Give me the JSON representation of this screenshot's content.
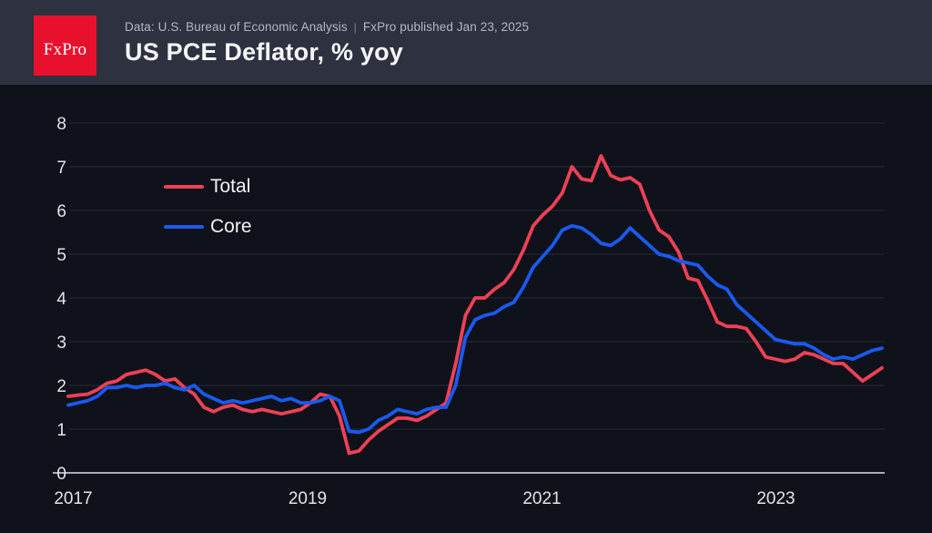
{
  "header": {
    "logo_text": "FxPro",
    "source": "Data: U.S. Bureau of Economic Analysis",
    "separator": "|",
    "published": "FxPro published Jan 23, 2025",
    "title": "US PCE Deflator, % yoy"
  },
  "colors": {
    "logo_red": "#e7112e",
    "header_background": "#2e3140",
    "chart_background": "#0f121a",
    "total_line": "#ef4155",
    "core_line": "#1a5af0"
  },
  "chart_data": {
    "type": "line",
    "title": "US PCE Deflator, % yoy",
    "x_unit": "monthly",
    "x_start": "2017-11",
    "x_end": "2024-11",
    "x_tick_labels": [
      "2017",
      "2019",
      "2021",
      "2023"
    ],
    "y_ticks": [
      0,
      1,
      2,
      3,
      4,
      5,
      6,
      7,
      8
    ],
    "ylim": [
      0,
      8.6
    ],
    "grid": "horizontal",
    "legend_position": "top-left-inside",
    "series": [
      {
        "name": "Total",
        "color": "#ef4155",
        "values": [
          1.75,
          1.78,
          1.8,
          1.9,
          2.05,
          2.1,
          2.25,
          2.3,
          2.35,
          2.25,
          2.1,
          2.15,
          1.95,
          1.8,
          1.5,
          1.4,
          1.5,
          1.55,
          1.45,
          1.4,
          1.45,
          1.4,
          1.35,
          1.4,
          1.45,
          1.6,
          1.8,
          1.75,
          1.3,
          0.45,
          0.5,
          0.75,
          0.95,
          1.1,
          1.25,
          1.25,
          1.2,
          1.3,
          1.45,
          1.6,
          2.5,
          3.6,
          4.0,
          4.0,
          4.2,
          4.35,
          4.65,
          5.1,
          5.65,
          5.9,
          6.1,
          6.4,
          7.0,
          6.72,
          6.68,
          7.25,
          6.8,
          6.7,
          6.75,
          6.6,
          6.0,
          5.55,
          5.4,
          5.05,
          4.45,
          4.4,
          3.95,
          3.45,
          3.35,
          3.35,
          3.3,
          3.0,
          2.65,
          2.6,
          2.55,
          2.6,
          2.75,
          2.7,
          2.6,
          2.5,
          2.5,
          2.3,
          2.1,
          2.25,
          2.4
        ]
      },
      {
        "name": "Core",
        "color": "#1a5af0",
        "values": [
          1.55,
          1.6,
          1.65,
          1.75,
          1.95,
          1.95,
          2.0,
          1.95,
          2.0,
          2.0,
          2.05,
          1.95,
          1.9,
          2.0,
          1.8,
          1.7,
          1.6,
          1.65,
          1.6,
          1.65,
          1.7,
          1.75,
          1.65,
          1.7,
          1.6,
          1.6,
          1.65,
          1.75,
          1.65,
          0.95,
          0.93,
          1.0,
          1.2,
          1.3,
          1.45,
          1.4,
          1.35,
          1.45,
          1.5,
          1.5,
          2.0,
          3.1,
          3.5,
          3.6,
          3.65,
          3.8,
          3.9,
          4.25,
          4.7,
          4.95,
          5.2,
          5.55,
          5.65,
          5.6,
          5.45,
          5.25,
          5.2,
          5.35,
          5.6,
          5.4,
          5.2,
          5.0,
          4.95,
          4.85,
          4.8,
          4.75,
          4.5,
          4.3,
          4.2,
          3.85,
          3.65,
          3.45,
          3.25,
          3.05,
          3.0,
          2.95,
          2.95,
          2.85,
          2.7,
          2.6,
          2.65,
          2.6,
          2.7,
          2.8,
          2.85
        ]
      }
    ]
  }
}
